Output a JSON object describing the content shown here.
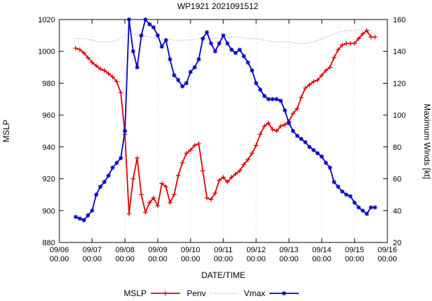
{
  "chart_data": {
    "type": "line",
    "title": "WP1921 2021091512",
    "xlabel": "DATE/TIME",
    "ylabel": "MSLP",
    "y2label": "Maximum Winds [kt]",
    "x_unit": "days since 09/06 00:00",
    "x_range": [
      0,
      10
    ],
    "x_ticks": [
      {
        "date": "09/06",
        "time": "00:00"
      },
      {
        "date": "09/07",
        "time": "00:00"
      },
      {
        "date": "09/08",
        "time": "00:00"
      },
      {
        "date": "09/09",
        "time": "00:00"
      },
      {
        "date": "09/10",
        "time": "00:00"
      },
      {
        "date": "09/11",
        "time": "00:00"
      },
      {
        "date": "09/12",
        "time": "00:00"
      },
      {
        "date": "09/13",
        "time": "00:00"
      },
      {
        "date": "09/14",
        "time": "00:00"
      },
      {
        "date": "09/15",
        "time": "00:00"
      },
      {
        "date": "09/16",
        "time": "00:00"
      }
    ],
    "y_left": {
      "min": 880,
      "max": 1020,
      "step": 20
    },
    "y_right": {
      "min": 20,
      "max": 160,
      "step": 20
    },
    "grid": "vertical-dotted",
    "legend_position": "bottom-center",
    "series": [
      {
        "name": "MSLP",
        "axis": "left",
        "units": "hPa",
        "color": "#e10000",
        "line": "solid",
        "marker": "plus",
        "x_start_days": 0.5,
        "x_step_days": 0.125,
        "values": [
          1002,
          1001,
          999,
          996,
          993,
          991,
          989,
          988,
          986,
          984,
          981,
          974,
          948,
          898,
          920,
          933,
          910,
          899,
          905,
          908,
          903,
          917,
          915,
          905,
          910,
          922,
          930,
          936,
          938,
          941,
          942,
          925,
          908,
          907,
          911,
          919,
          921,
          918,
          921,
          923,
          925,
          929,
          932,
          936,
          941,
          948,
          953,
          955,
          951,
          950,
          953,
          954,
          956,
          961,
          964,
          971,
          977,
          979,
          981,
          982,
          985,
          988,
          990,
          996,
          1001,
          1004,
          1005,
          1005,
          1005,
          1008,
          1011,
          1013,
          1009,
          1009
        ]
      },
      {
        "name": "Penv",
        "axis": "left",
        "units": "hPa",
        "color": "#7a7a7a",
        "line": "dotted",
        "marker": "none",
        "x_start_days": 0.5,
        "x_step_days": 0.25,
        "values": [
          1008,
          1008,
          1007,
          1006,
          1006,
          1007,
          1010,
          1011,
          1010,
          1009,
          1008,
          1008,
          1007,
          1007,
          1007,
          1008,
          1008,
          1008,
          1008,
          1009,
          1009,
          1008,
          1008,
          1007,
          1006,
          1006,
          1006,
          1005,
          1005,
          1006,
          1008,
          1010,
          1012,
          1013,
          1013,
          1014,
          1013
        ]
      },
      {
        "name": "Vmax",
        "axis": "right",
        "units": "kt",
        "color": "#0000c8",
        "line": "solid",
        "marker": "asterisk",
        "x_start_days": 0.5,
        "x_step_days": 0.125,
        "values": [
          36,
          35,
          34,
          37,
          40,
          50,
          55,
          58,
          62,
          67,
          70,
          73,
          90,
          160,
          140,
          130,
          150,
          160,
          157,
          155,
          150,
          143,
          147,
          135,
          125,
          122,
          118,
          120,
          127,
          130,
          135,
          148,
          152,
          145,
          140,
          145,
          150,
          145,
          141,
          139,
          141,
          137,
          133,
          128,
          120,
          116,
          112,
          110,
          110,
          110,
          109,
          103,
          95,
          90,
          87,
          85,
          83,
          80,
          78,
          76,
          74,
          70,
          67,
          58,
          55,
          52,
          50,
          49,
          45,
          42,
          40,
          38,
          42,
          42
        ]
      }
    ]
  }
}
